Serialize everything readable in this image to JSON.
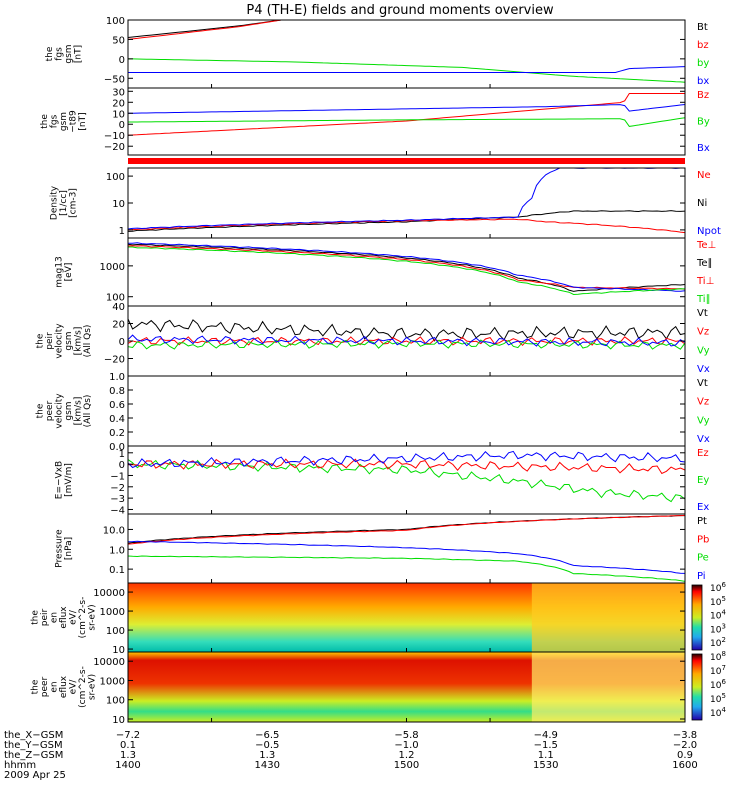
{
  "title": "P4 (TH-E) fields and ground moments overview",
  "colors": {
    "black": "#000000",
    "red": "#ff0000",
    "green": "#00dd00",
    "blue": "#0000ff"
  },
  "chart_data": [
    {
      "type": "line",
      "id": "fgs_gsm",
      "ylabel": [
        "the",
        "fgs",
        "gsm",
        "[nT]"
      ],
      "ylim": [
        -75,
        100
      ],
      "yticks": [
        {
          "v": 100,
          "t": "100"
        },
        {
          "v": 50,
          "t": "50"
        },
        {
          "v": 0,
          "t": "0"
        },
        {
          "v": -50,
          "t": "−50"
        }
      ],
      "legend": [
        {
          "t": "Bt",
          "c": "black"
        },
        {
          "t": "bz",
          "c": "red"
        },
        {
          "t": "by",
          "c": "green"
        },
        {
          "t": "bx",
          "c": "blue"
        }
      ],
      "series": [
        {
          "c": "black",
          "x": [
            1400,
            1440,
            1455,
            1600
          ],
          "y": [
            55,
            85,
            100,
            100
          ]
        },
        {
          "c": "red",
          "x": [
            1400,
            1440,
            1455,
            1600
          ],
          "y": [
            50,
            83,
            100,
            100
          ]
        },
        {
          "c": "green",
          "x": [
            1400,
            1460,
            1520,
            1560,
            1600
          ],
          "y": [
            0,
            -8,
            -22,
            -45,
            -60
          ]
        },
        {
          "c": "blue",
          "x": [
            1400,
            1500,
            1575,
            1580,
            1600
          ],
          "y": [
            -35,
            -35,
            -35,
            -25,
            -20
          ]
        }
      ]
    },
    {
      "type": "line",
      "id": "fgs_gsm_t89",
      "ylabel": [
        "the",
        "fgs",
        "gsm",
        "−t89",
        "[nT]"
      ],
      "ylim": [
        -28,
        33
      ],
      "yticks": [
        {
          "v": 30,
          "t": "30"
        },
        {
          "v": 20,
          "t": "20"
        },
        {
          "v": 10,
          "t": "10"
        },
        {
          "v": 0,
          "t": "0"
        },
        {
          "v": -10,
          "t": "−10"
        },
        {
          "v": -20,
          "t": "−20"
        }
      ],
      "legend": [
        {
          "t": "Bz",
          "c": "red"
        },
        {
          "t": "By",
          "c": "green"
        },
        {
          "t": "Bx",
          "c": "blue"
        }
      ],
      "series": [
        {
          "c": "red",
          "x": [
            1400,
            1500,
            1578,
            1580,
            1600
          ],
          "y": [
            -10,
            3,
            20,
            28,
            28
          ]
        },
        {
          "c": "green",
          "x": [
            1400,
            1500,
            1578,
            1580,
            1600
          ],
          "y": [
            2,
            4,
            5,
            -2,
            6
          ]
        },
        {
          "c": "blue",
          "x": [
            1400,
            1450,
            1550,
            1578,
            1580,
            1600
          ],
          "y": [
            10,
            12,
            16,
            18,
            12,
            18
          ]
        }
      ]
    },
    {
      "type": "line",
      "id": "density",
      "ylabel": [
        "Density",
        "[1/cc]",
        "[cm-3]"
      ],
      "log": true,
      "ylim": [
        0.5,
        200
      ],
      "yticks": [
        {
          "v": 100,
          "t": "100"
        },
        {
          "v": 10,
          "t": "10"
        },
        {
          "v": 1,
          "t": "1"
        }
      ],
      "legend": [
        {
          "t": "Ne",
          "c": "red"
        },
        {
          "t": "Ni",
          "c": "black"
        },
        {
          "t": "Npot",
          "c": "blue"
        }
      ],
      "series": [
        {
          "c": "black",
          "x": [
            1400,
            1500,
            1540,
            1560,
            1600
          ],
          "y": [
            0.9,
            2,
            3,
            5,
            5
          ]
        },
        {
          "c": "red",
          "x": [
            1400,
            1500,
            1540,
            1550,
            1600
          ],
          "y": [
            1,
            2.2,
            2.5,
            2,
            0.8
          ]
        },
        {
          "c": "blue",
          "x": [
            1400,
            1500,
            1540,
            1545,
            1555,
            1600
          ],
          "y": [
            1.1,
            2.3,
            3,
            15,
            200,
            200
          ]
        }
      ]
    },
    {
      "type": "line",
      "id": "temperature",
      "ylabel": [
        "mag13",
        "[eV]"
      ],
      "log": true,
      "ylim": [
        50,
        8000
      ],
      "yticks": [
        {
          "v": 1000,
          "t": "1000"
        },
        {
          "v": 100,
          "t": "100"
        }
      ],
      "legend": [
        {
          "t": "Te⊥",
          "c": "red"
        },
        {
          "t": "Te∥",
          "c": "black"
        },
        {
          "t": "Ti⊥",
          "c": "red"
        },
        {
          "t": "Ti∥",
          "c": "green"
        }
      ],
      "series": [
        {
          "c": "black",
          "x": [
            1400,
            1500,
            1540,
            1560,
            1600
          ],
          "y": [
            5000,
            1800,
            400,
            150,
            250
          ]
        },
        {
          "c": "red",
          "x": [
            1400,
            1500,
            1540,
            1560,
            1600
          ],
          "y": [
            4500,
            1600,
            350,
            200,
            180
          ]
        },
        {
          "c": "blue",
          "x": [
            1400,
            1500,
            1540,
            1560,
            1600
          ],
          "y": [
            5500,
            2000,
            500,
            200,
            150
          ]
        },
        {
          "c": "green",
          "x": [
            1400,
            1500,
            1540,
            1560,
            1600
          ],
          "y": [
            4000,
            1400,
            300,
            120,
            180
          ]
        }
      ]
    },
    {
      "type": "line",
      "id": "peir_velocity",
      "ylabel": [
        "the",
        "peir",
        "velocity",
        "gsm",
        "[km/s]",
        "(All Qs)"
      ],
      "ylim": [
        -40,
        40
      ],
      "yticks": [
        {
          "v": 40,
          "t": "40"
        },
        {
          "v": 20,
          "t": "20"
        },
        {
          "v": 0,
          "t": "0"
        },
        {
          "v": -20,
          "t": "−20"
        }
      ],
      "legend": [
        {
          "t": "Vt",
          "c": "black"
        },
        {
          "t": "Vz",
          "c": "red"
        },
        {
          "t": "Vy",
          "c": "green"
        },
        {
          "t": "Vx",
          "c": "blue"
        }
      ],
      "series": [
        {
          "c": "black",
          "x": [
            1400,
            1450,
            1500,
            1600
          ],
          "y": [
            20,
            14,
            8,
            10
          ]
        },
        {
          "c": "red",
          "x": [
            1400,
            1500,
            1600
          ],
          "y": [
            0,
            0,
            0
          ]
        },
        {
          "c": "green",
          "x": [
            1400,
            1500,
            1600
          ],
          "y": [
            -5,
            -3,
            -5
          ]
        },
        {
          "c": "blue",
          "x": [
            1400,
            1500,
            1600
          ],
          "y": [
            2,
            0,
            -2
          ]
        }
      ]
    },
    {
      "type": "line",
      "id": "peer_velocity",
      "ylabel": [
        "the",
        "peer",
        "velocity",
        "gsm",
        "[km/s]",
        "(All Qs)"
      ],
      "ylim": [
        0,
        1
      ],
      "yticks": [
        {
          "v": 1,
          "t": "1.0"
        },
        {
          "v": 0.8,
          "t": "0.8"
        },
        {
          "v": 0.6,
          "t": "0.6"
        },
        {
          "v": 0.4,
          "t": "0.4"
        },
        {
          "v": 0.2,
          "t": "0.2"
        },
        {
          "v": 0,
          "t": "0.0"
        }
      ],
      "legend": [
        {
          "t": "Vt",
          "c": "black"
        },
        {
          "t": "Vz",
          "c": "red"
        },
        {
          "t": "Vy",
          "c": "green"
        },
        {
          "t": "Vx",
          "c": "blue"
        }
      ],
      "series": []
    },
    {
      "type": "line",
      "id": "efield",
      "ylabel": [
        "E=−VxB",
        "[mV/m]"
      ],
      "ylim": [
        -4.4,
        1.6
      ],
      "yticks": [
        {
          "v": 1,
          "t": "1"
        },
        {
          "v": 0,
          "t": "0"
        },
        {
          "v": -1,
          "t": "−1"
        },
        {
          "v": -2,
          "t": "−2"
        },
        {
          "v": -3,
          "t": "−3"
        },
        {
          "v": -4,
          "t": "−4"
        }
      ],
      "legend": [
        {
          "t": "Ez",
          "c": "red"
        },
        {
          "t": "Ey",
          "c": "green"
        },
        {
          "t": "Ex",
          "c": "blue"
        }
      ],
      "series": [
        {
          "c": "green",
          "x": [
            1400,
            1500,
            1540,
            1570,
            1600
          ],
          "y": [
            0,
            -0.5,
            -1.5,
            -2.5,
            -3
          ]
        },
        {
          "c": "red",
          "x": [
            1400,
            1500,
            1600
          ],
          "y": [
            0,
            0,
            -0.5
          ]
        },
        {
          "c": "blue",
          "x": [
            1400,
            1500,
            1540,
            1600
          ],
          "y": [
            0,
            0.5,
            0.8,
            0.5
          ]
        }
      ]
    },
    {
      "type": "line",
      "id": "pressure",
      "ylabel": [
        "Pressure",
        "[nPa]"
      ],
      "log": true,
      "ylim": [
        0.02,
        60
      ],
      "yticks": [
        {
          "v": 10,
          "t": "10.0"
        },
        {
          "v": 1,
          "t": "1.0"
        },
        {
          "v": 0.1,
          "t": "0.1"
        }
      ],
      "legend": [
        {
          "t": "Pt",
          "c": "black"
        },
        {
          "t": "Pb",
          "c": "red"
        },
        {
          "t": "Pe",
          "c": "green"
        },
        {
          "t": "Pi",
          "c": "blue"
        }
      ],
      "series": [
        {
          "c": "black",
          "x": [
            1400,
            1500,
            1600
          ],
          "y": [
            2,
            10,
            50
          ]
        },
        {
          "c": "red",
          "x": [
            1400,
            1500,
            1600
          ],
          "y": [
            1.8,
            9,
            50
          ]
        },
        {
          "c": "green",
          "x": [
            1400,
            1500,
            1540,
            1560,
            1600
          ],
          "y": [
            0.45,
            0.35,
            0.25,
            0.06,
            0.025
          ]
        },
        {
          "c": "blue",
          "x": [
            1400,
            1500,
            1540,
            1560,
            1600
          ],
          "y": [
            2.5,
            1.2,
            0.6,
            0.15,
            0.06
          ]
        }
      ]
    },
    {
      "type": "heatmap",
      "id": "peir_en_eflux",
      "ylabel": [
        "the",
        "peir",
        "en",
        "eflux",
        "eV/",
        "(cm^2-s-",
        "sr-eV)"
      ],
      "log": true,
      "ylim": [
        7,
        30000
      ],
      "yticks": [
        {
          "v": 10000,
          "t": "10000"
        },
        {
          "v": 1000,
          "t": "1000"
        },
        {
          "v": 100,
          "t": "100"
        },
        {
          "v": 10,
          "t": "10"
        }
      ],
      "colorbar": [
        "10^6",
        "10^5",
        "10^4",
        "10^3",
        "10^2"
      ]
    },
    {
      "type": "heatmap",
      "id": "peer_en_eflux",
      "ylabel": [
        "the",
        "peer",
        "en",
        "eflux",
        "eV/",
        "(cm^2-s-",
        "sr-eV)"
      ],
      "log": true,
      "ylim": [
        7,
        30000
      ],
      "yticks": [
        {
          "v": 10000,
          "t": "10000"
        },
        {
          "v": 1000,
          "t": "1000"
        },
        {
          "v": 100,
          "t": "100"
        },
        {
          "v": 10,
          "t": "10"
        }
      ],
      "colorbar": [
        "10^8",
        "10^7",
        "10^6",
        "10^5",
        "10^4"
      ]
    }
  ],
  "xaxis": {
    "rows": [
      {
        "label": "the_X−GSM",
        "values": [
          "−7.2",
          "−6.5",
          "−5.8",
          "−4.9",
          "−3.8"
        ]
      },
      {
        "label": "the_Y−GSM",
        "values": [
          "0.1",
          "−0.5",
          "−1.0",
          "−1.5",
          "−2.0"
        ]
      },
      {
        "label": "the_Z−GSM",
        "values": [
          "1.3",
          "1.3",
          "1.2",
          "1.1",
          "0.9"
        ]
      },
      {
        "label": "hhmm",
        "values": [
          "1400",
          "1430",
          "1500",
          "1530",
          "1600"
        ]
      }
    ],
    "date": "2009 Apr 25",
    "xlim": [
      1400,
      1600
    ]
  }
}
